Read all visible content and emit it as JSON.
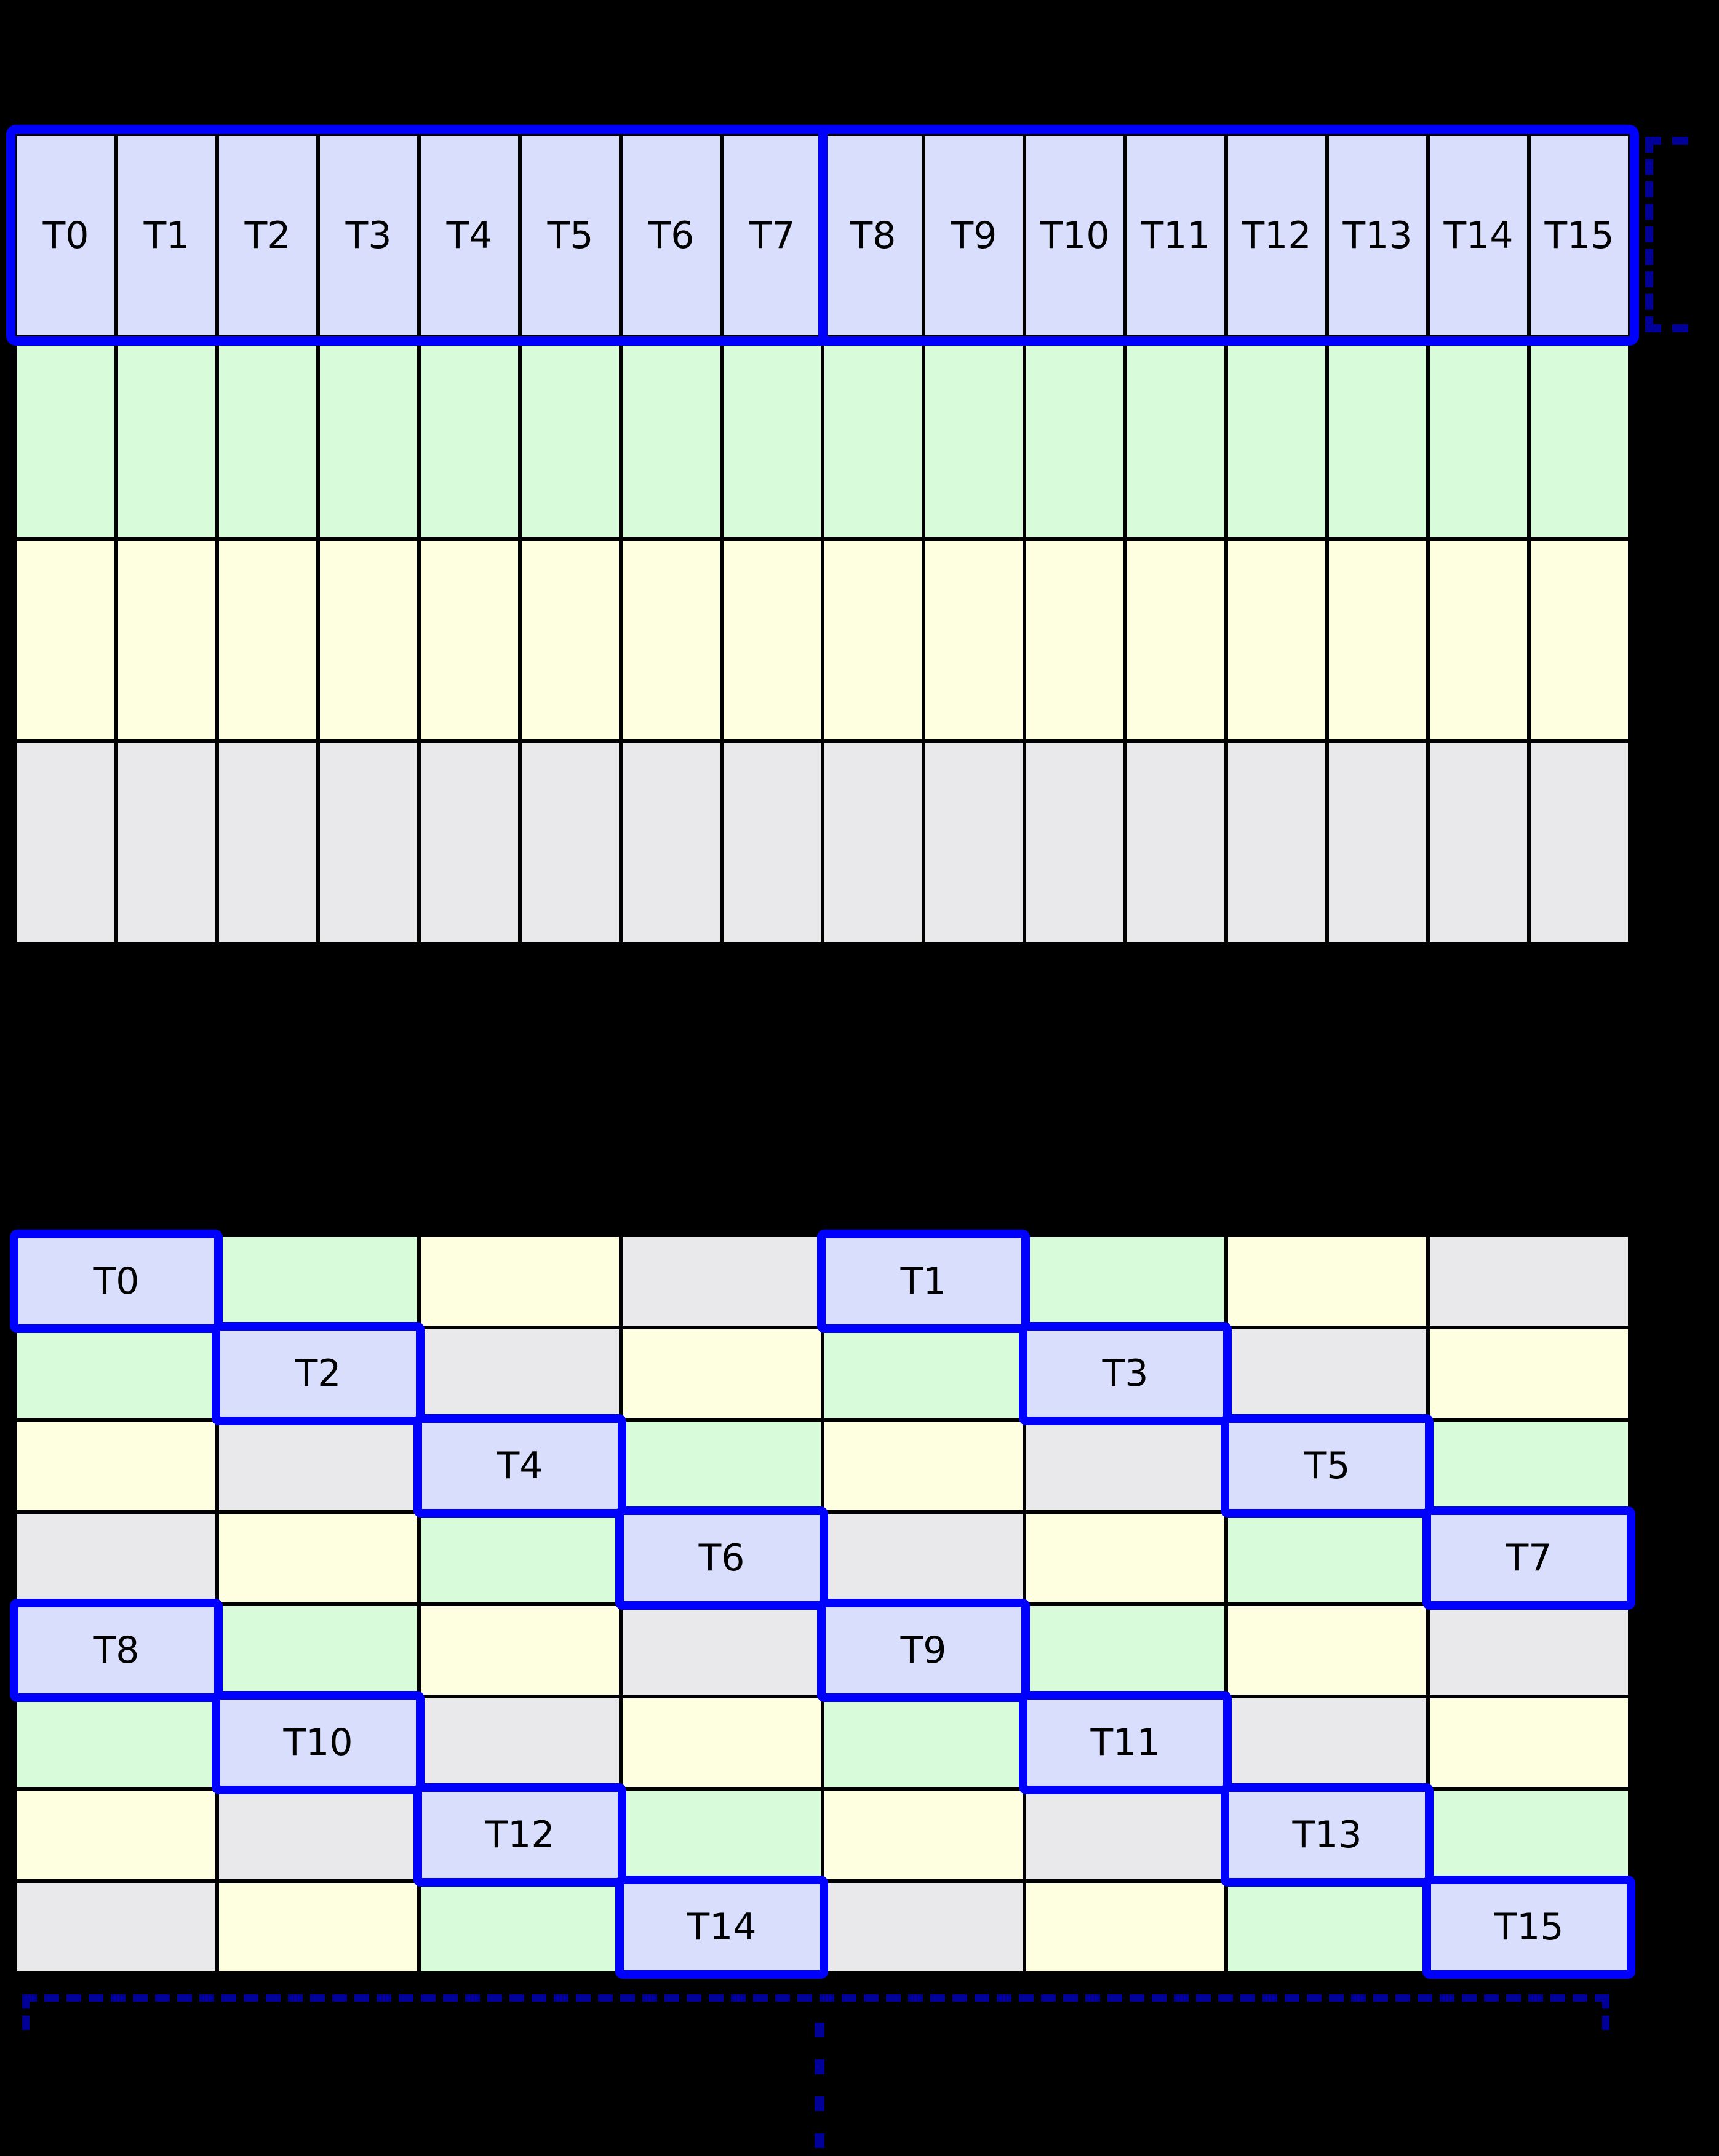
{
  "palette": {
    "thread": "#d8defb",
    "green": "#d8fcda",
    "yellow": "#fefee0",
    "gray": "#e9e9eb",
    "highlight": "#0000ff",
    "bracket": "#000099",
    "grid_line": "#000000",
    "background": "#000000",
    "label_color": "#000000"
  },
  "top_grid": {
    "thread_labels": [
      "T0",
      "T1",
      "T2",
      "T3",
      "T4",
      "T5",
      "T6",
      "T7",
      "T8",
      "T9",
      "T10",
      "T11",
      "T12",
      "T13",
      "T14",
      "T15"
    ],
    "row_roles": [
      "thread",
      "green",
      "yellow",
      "gray"
    ],
    "group_split_after_col": 8
  },
  "bottom_grid": {
    "color_matrix": [
      [
        "thread",
        "green",
        "yellow",
        "gray",
        "thread",
        "green",
        "yellow",
        "gray"
      ],
      [
        "green",
        "thread",
        "gray",
        "yellow",
        "green",
        "thread",
        "gray",
        "yellow"
      ],
      [
        "yellow",
        "gray",
        "thread",
        "green",
        "yellow",
        "gray",
        "thread",
        "green"
      ],
      [
        "gray",
        "yellow",
        "green",
        "thread",
        "gray",
        "yellow",
        "green",
        "thread"
      ],
      [
        "thread",
        "green",
        "yellow",
        "gray",
        "thread",
        "green",
        "yellow",
        "gray"
      ],
      [
        "green",
        "thread",
        "gray",
        "yellow",
        "green",
        "thread",
        "gray",
        "yellow"
      ],
      [
        "yellow",
        "gray",
        "thread",
        "green",
        "yellow",
        "gray",
        "thread",
        "green"
      ],
      [
        "gray",
        "yellow",
        "green",
        "thread",
        "gray",
        "yellow",
        "green",
        "thread"
      ]
    ],
    "thread_cells": [
      {
        "row": 0,
        "col": 0,
        "label": "T0"
      },
      {
        "row": 0,
        "col": 4,
        "label": "T1"
      },
      {
        "row": 1,
        "col": 1,
        "label": "T2"
      },
      {
        "row": 1,
        "col": 5,
        "label": "T3"
      },
      {
        "row": 2,
        "col": 2,
        "label": "T4"
      },
      {
        "row": 2,
        "col": 6,
        "label": "T5"
      },
      {
        "row": 3,
        "col": 3,
        "label": "T6"
      },
      {
        "row": 3,
        "col": 7,
        "label": "T7"
      },
      {
        "row": 4,
        "col": 0,
        "label": "T8"
      },
      {
        "row": 4,
        "col": 4,
        "label": "T9"
      },
      {
        "row": 5,
        "col": 1,
        "label": "T10"
      },
      {
        "row": 5,
        "col": 5,
        "label": "T11"
      },
      {
        "row": 6,
        "col": 2,
        "label": "T12"
      },
      {
        "row": 6,
        "col": 6,
        "label": "T13"
      },
      {
        "row": 7,
        "col": 3,
        "label": "T14"
      },
      {
        "row": 7,
        "col": 7,
        "label": "T15"
      }
    ]
  },
  "annotations": {
    "warp_bracket_style": "dashed",
    "tile_bracket_style": "dashed",
    "ellipsis_dash_count": 4
  }
}
